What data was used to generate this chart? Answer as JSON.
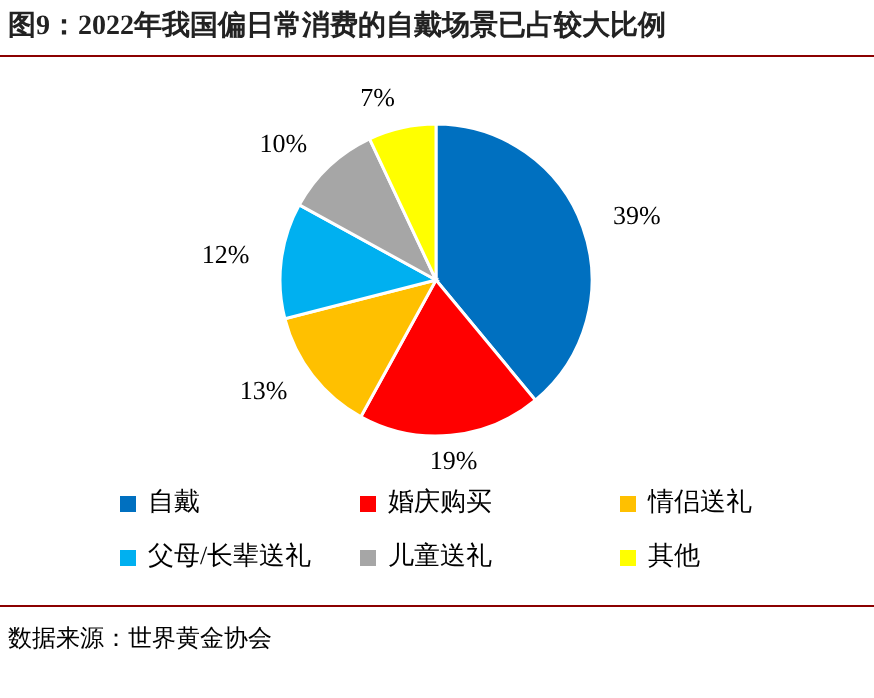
{
  "chart_data": {
    "type": "pie",
    "title": "图9：2022年我国偏日常消费的自戴场景已占较大比例",
    "categories": [
      "自戴",
      "婚庆购买",
      "情侣送礼",
      "父母/长辈送礼",
      "儿童送礼",
      "其他"
    ],
    "values": [
      39,
      19,
      13,
      12,
      10,
      7
    ],
    "colors": [
      "#0070c0",
      "#ff0000",
      "#ffc000",
      "#00b0f0",
      "#a6a6a6",
      "#ffff00"
    ],
    "value_labels": [
      "39%",
      "19%",
      "13%",
      "12%",
      "10%",
      "7%"
    ],
    "legend": "bottom",
    "annotations": [
      "数据来源：世界黄金协会"
    ]
  }
}
